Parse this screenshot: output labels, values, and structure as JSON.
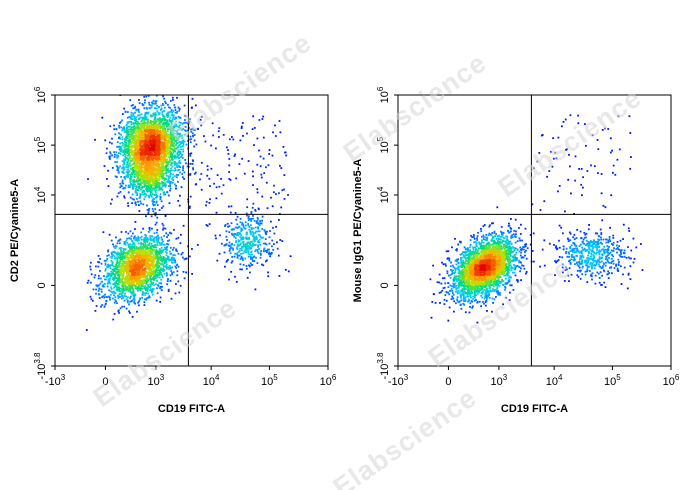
{
  "watermark": "Elabscience",
  "chart_data": [
    {
      "type": "scatter",
      "subtype": "flow-cytometry-density-dot-plot",
      "xlabel": "CD19 FITC-A",
      "ylabel": "CD2 PE/Cyanine5-A",
      "x_scale": "biexponential",
      "y_scale": "biexponential",
      "xlim": [
        -1000,
        1000000
      ],
      "ylim": [
        -6310,
        1000000
      ],
      "x_ticks": [
        {
          "value": -1000,
          "label": "-10",
          "sup": "3"
        },
        {
          "value": 0,
          "label": "0",
          "sup": ""
        },
        {
          "value": 1000,
          "label": "10",
          "sup": "3"
        },
        {
          "value": 10000,
          "label": "10",
          "sup": "4"
        },
        {
          "value": 100000,
          "label": "10",
          "sup": "5"
        },
        {
          "value": 1000000,
          "label": "10",
          "sup": "6"
        }
      ],
      "y_ticks": [
        {
          "value": -6310,
          "label": "-10",
          "sup": "3.8"
        },
        {
          "value": 0,
          "label": "0",
          "sup": ""
        },
        {
          "value": 10000,
          "label": "10",
          "sup": "4"
        },
        {
          "value": 100000,
          "label": "10",
          "sup": "5"
        },
        {
          "value": 1000000,
          "label": "10",
          "sup": "6"
        }
      ],
      "gates": {
        "x": 4000,
        "y": 4000
      },
      "color_scale": [
        "blue",
        "cyan",
        "green",
        "yellow",
        "orange",
        "red"
      ],
      "populations": [
        {
          "x_center": 800,
          "y_center": 90000,
          "density": "high"
        },
        {
          "x_center": 400,
          "y_center": 200,
          "density": "high"
        },
        {
          "x_center": 45000,
          "y_center": 1000,
          "density": "medium"
        }
      ],
      "grid": false,
      "legend": "none"
    },
    {
      "type": "scatter",
      "subtype": "flow-cytometry-density-dot-plot",
      "xlabel": "CD19 FITC-A",
      "ylabel": "Mouse IgG1 PE/Cyanine5-A",
      "x_scale": "biexponential",
      "y_scale": "biexponential",
      "xlim": [
        -1000,
        1000000
      ],
      "ylim": [
        -6310,
        1000000
      ],
      "x_ticks": [
        {
          "value": -1000,
          "label": "-10",
          "sup": "3"
        },
        {
          "value": 0,
          "label": "0",
          "sup": ""
        },
        {
          "value": 1000,
          "label": "10",
          "sup": "3"
        },
        {
          "value": 10000,
          "label": "10",
          "sup": "4"
        },
        {
          "value": 100000,
          "label": "10",
          "sup": "5"
        },
        {
          "value": 1000000,
          "label": "10",
          "sup": "6"
        }
      ],
      "y_ticks": [
        {
          "value": -6310,
          "label": "-10",
          "sup": "3.8"
        },
        {
          "value": 0,
          "label": "0",
          "sup": ""
        },
        {
          "value": 10000,
          "label": "10",
          "sup": "4"
        },
        {
          "value": 100000,
          "label": "10",
          "sup": "5"
        },
        {
          "value": 1000000,
          "label": "10",
          "sup": "6"
        }
      ],
      "gates": {
        "x": 4000,
        "y": 4000
      },
      "color_scale": [
        "blue",
        "cyan",
        "green",
        "yellow",
        "orange",
        "red"
      ],
      "populations": [
        {
          "x_center": 500,
          "y_center": 200,
          "density": "high"
        },
        {
          "x_center": 45000,
          "y_center": 500,
          "density": "medium"
        }
      ],
      "grid": false,
      "legend": "none"
    }
  ]
}
